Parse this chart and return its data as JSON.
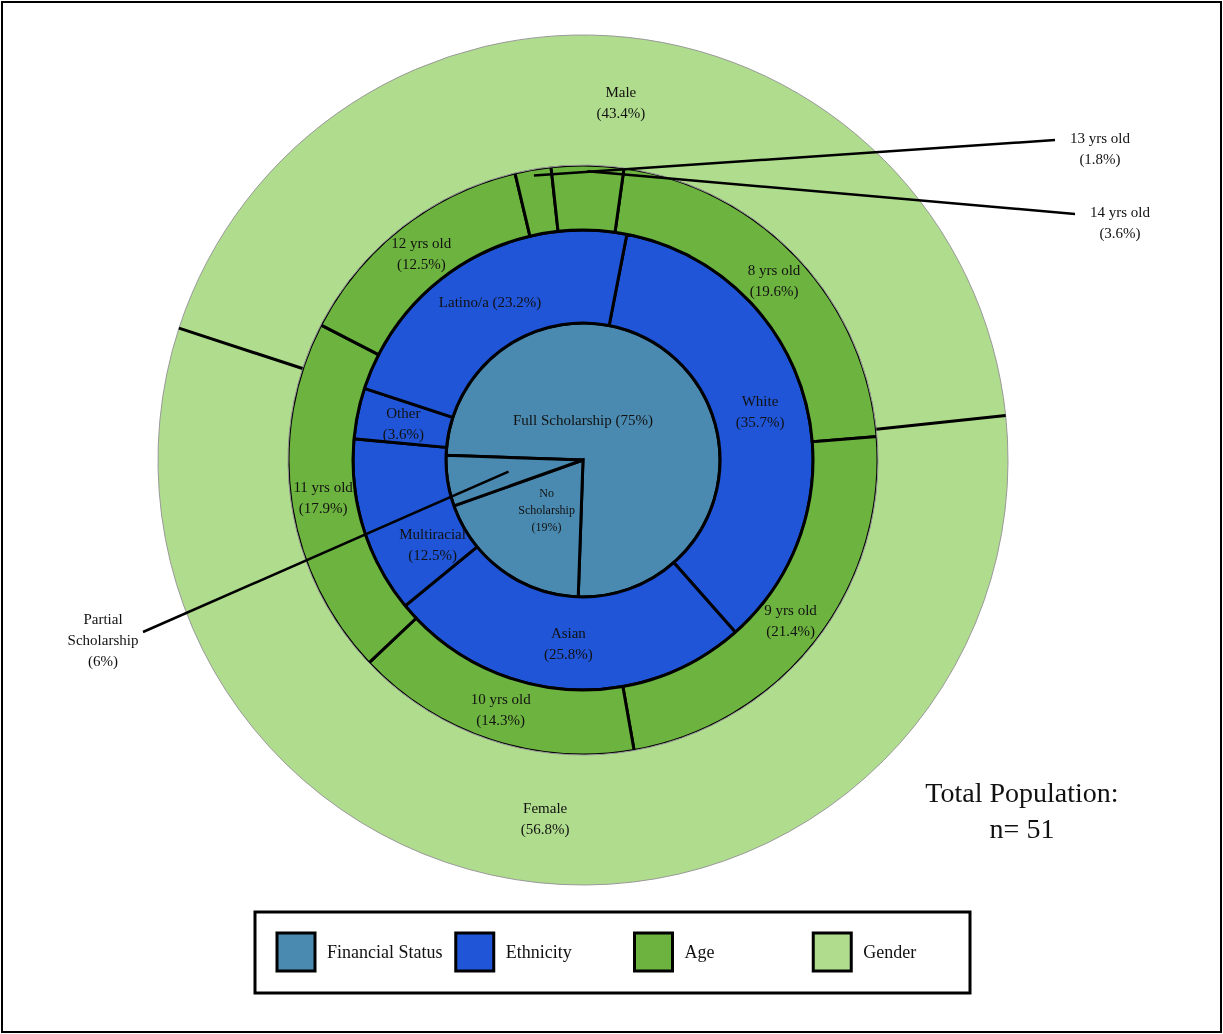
{
  "chart_data": [
    {
      "type": "pie",
      "categories": [
        "Full Scholarship",
        "No Scholarship",
        "Partial Scholarship"
      ],
      "series": [
        {
          "name": "Financial Status",
          "color": "#4a8ab0",
          "values": [
            75,
            19,
            6
          ],
          "value_labels": [
            "(75%)",
            "(19%)",
            "(6%)"
          ]
        }
      ],
      "legend": "bottom"
    },
    {
      "type": "donut",
      "categories": [
        "White",
        "Asian",
        "Multiracial",
        "Other",
        "Latino/a"
      ],
      "series": [
        {
          "name": "Ethnicity",
          "color": "#1f55d6",
          "values": [
            35.7,
            25.8,
            12.5,
            3.6,
            23.2
          ],
          "value_labels": [
            "(35.7%)",
            "(25.8%)",
            "(12.5%)",
            "(3.6%)",
            "(23.2%)"
          ]
        }
      ],
      "legend": "bottom"
    },
    {
      "type": "donut",
      "categories": [
        "8 yrs old",
        "9 yrs old",
        "10 yrs old",
        "11 yrs old",
        "12 yrs old",
        "13 yrs old",
        "14 yrs old"
      ],
      "series": [
        {
          "name": "Age",
          "color": "#6db33f",
          "values": [
            19.6,
            21.4,
            14.3,
            17.9,
            12.5,
            1.8,
            3.6
          ],
          "value_labels": [
            "(19.6%)",
            "(21.4%)",
            "(14.3%)",
            "(17.9%)",
            "(12.5%)",
            "(1.8%)",
            "(3.6%)"
          ]
        }
      ],
      "legend": "bottom"
    },
    {
      "type": "donut",
      "categories": [
        "Female",
        "Male"
      ],
      "series": [
        {
          "name": "Gender",
          "color": "#b0dd8d",
          "values": [
            56.8,
            43.4
          ],
          "value_labels": [
            "(56.8%)",
            "(43.4%)"
          ]
        }
      ],
      "legend": "bottom",
      "annotations": [
        "Total Population:\nn= 51"
      ]
    }
  ]
}
